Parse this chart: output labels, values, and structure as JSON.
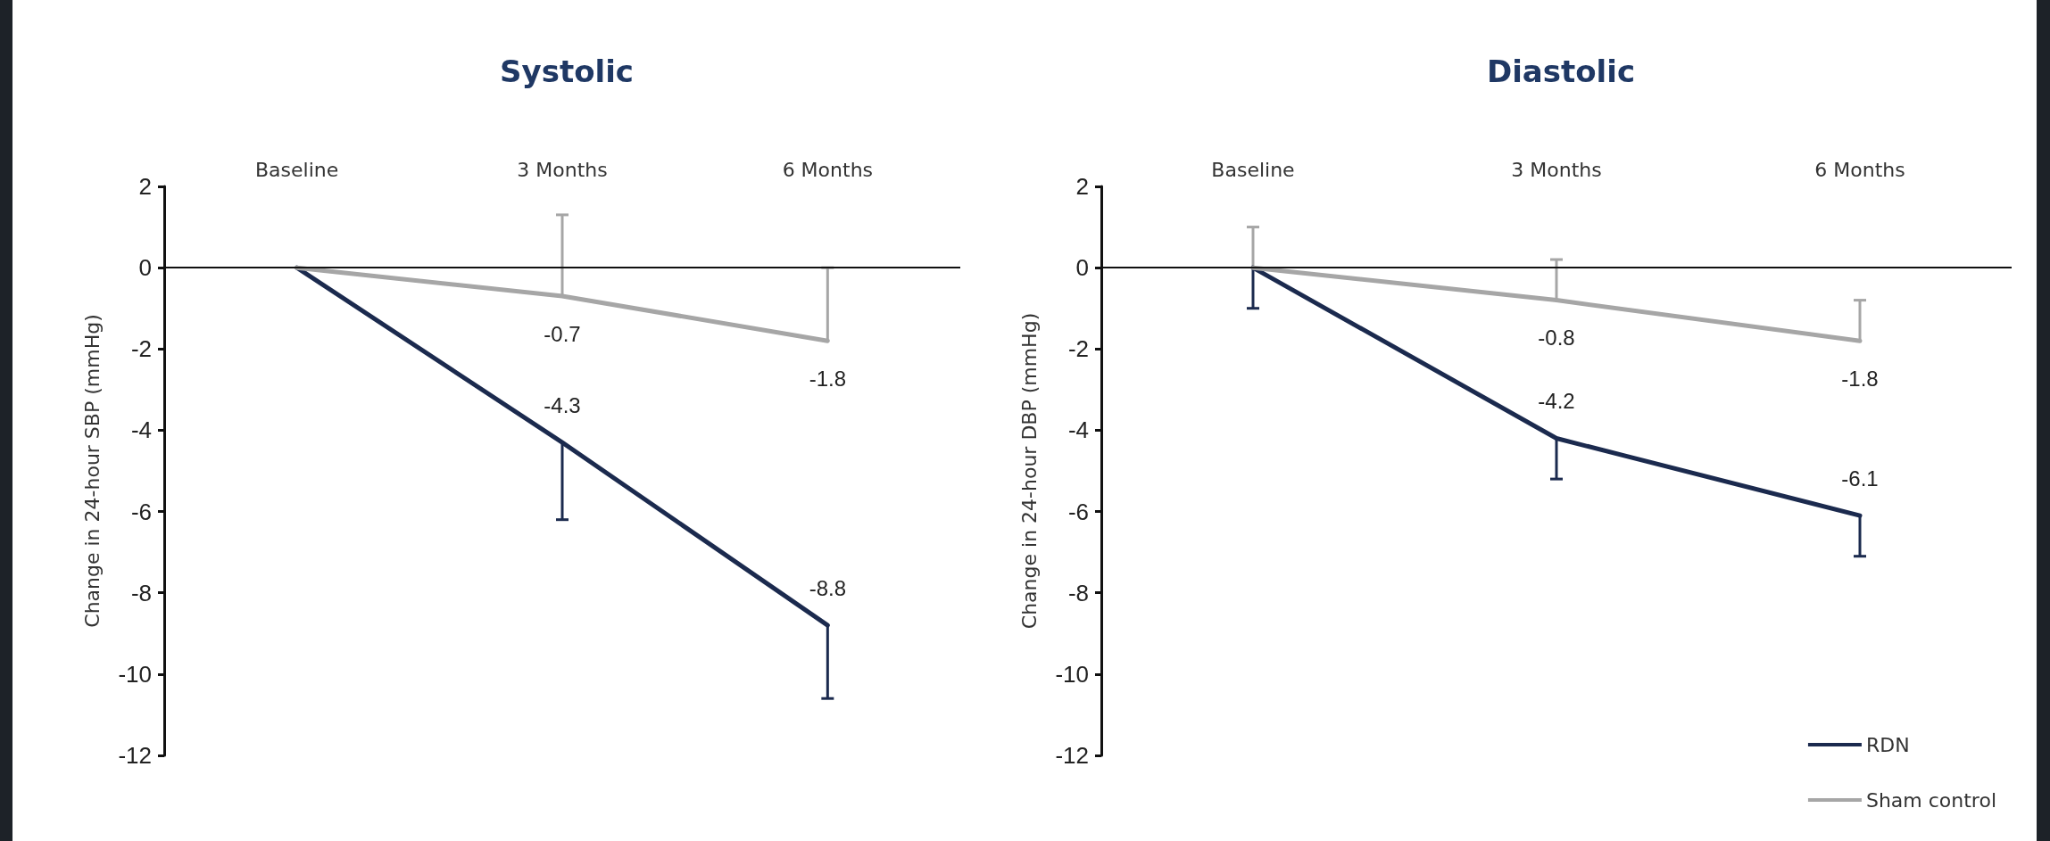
{
  "chart_data": [
    {
      "type": "line",
      "title": "Systolic",
      "ylabel": "Change in 24-hour SBP (mmHg)",
      "categories": [
        "Baseline",
        "3 Months",
        "6 Months"
      ],
      "ylim": [
        -12,
        2
      ],
      "yticks": [
        -12,
        -10,
        -8,
        -6,
        -4,
        -2,
        0,
        2
      ],
      "grid": false,
      "legend": false,
      "ref_lines": [
        {
          "axis": "y",
          "value": 0,
          "color": "#111111"
        }
      ],
      "marker": "none",
      "line_style": "solid",
      "series": [
        {
          "color": "#1b2a4e",
          "values": [
            0,
            -4.3,
            -8.8
          ],
          "errors": [
            null,
            [
              -6.2,
              -4.3
            ],
            [
              -10.6,
              -8.8
            ]
          ],
          "value_labels": [
            null,
            "-4.3",
            "-8.8"
          ]
        },
        {
          "color": "#a6a6a6",
          "values": [
            0,
            -0.7,
            -1.8
          ],
          "errors": [
            null,
            [
              -0.7,
              1.3
            ],
            [
              -1.8,
              0
            ]
          ],
          "value_labels": [
            null,
            "-0.7",
            "-1.8"
          ]
        }
      ]
    },
    {
      "type": "line",
      "title": "Diastolic",
      "ylabel": "Change in 24-hour DBP (mmHg)",
      "categories": [
        "Baseline",
        "3 Months",
        "6 Months"
      ],
      "ylim": [
        -12,
        2
      ],
      "yticks": [
        -12,
        -10,
        -8,
        -6,
        -4,
        -2,
        0,
        2
      ],
      "grid": false,
      "legend": "bottom right",
      "ref_lines": [
        {
          "axis": "y",
          "value": 0,
          "color": "#111111"
        }
      ],
      "marker": "none",
      "line_style": "solid",
      "series": [
        {
          "name": "RDN",
          "color": "#1b2a4e",
          "values": [
            0,
            -4.2,
            -6.1
          ],
          "errors": [
            [
              -1,
              0
            ],
            [
              -5.2,
              -4.2
            ],
            [
              -7.1,
              -6.1
            ]
          ],
          "value_labels": [
            null,
            "-4.2",
            "-6.1"
          ]
        },
        {
          "name": "Sham control",
          "color": "#a6a6a6",
          "values": [
            0,
            -0.8,
            -1.8
          ],
          "errors": [
            [
              0,
              1
            ],
            [
              -0.8,
              0.2
            ],
            [
              -1.8,
              -0.8
            ]
          ],
          "value_labels": [
            null,
            "-0.8",
            "-1.8"
          ]
        }
      ]
    }
  ]
}
